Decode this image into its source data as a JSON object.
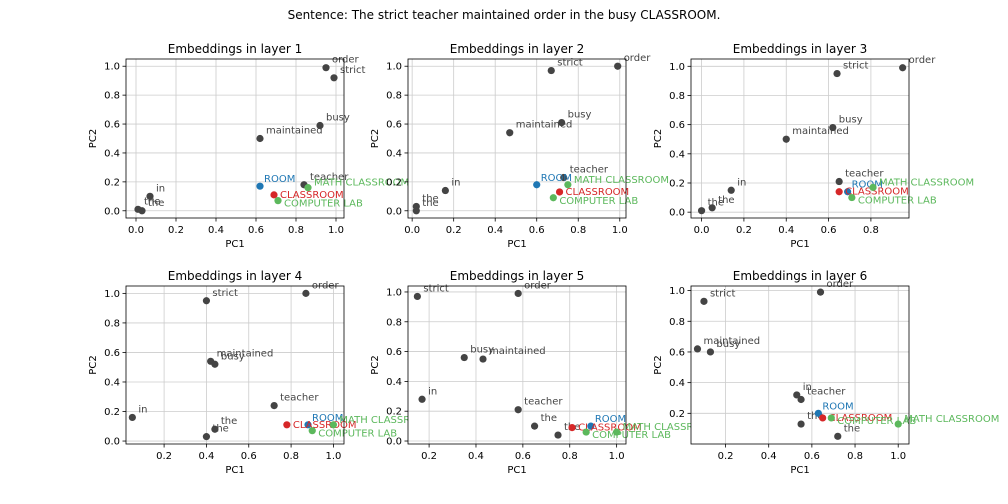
{
  "suptitle": "Sentence: The strict teacher maintained order in the busy CLASSROOM.",
  "colors": {
    "other": "#444444",
    "ROOM": "#1f77b4",
    "CLASSROOM": "#d62728",
    "MATH CLASSROOM": "#5cb85c",
    "COMPUTER LAB": "#5cb85c",
    "grid": "#cccccc"
  },
  "chart_data": [
    {
      "type": "scatter",
      "title": "Embeddings in layer 1",
      "xlabel": "PC1",
      "ylabel": "PC2",
      "xlim": [
        -0.05,
        1.04
      ],
      "ylim": [
        -0.05,
        1.05
      ],
      "xticks": [
        "0.0",
        "0.2",
        "0.4",
        "0.6",
        "0.8",
        "1.0"
      ],
      "xtick_values": [
        0,
        0.2,
        0.4,
        0.6,
        0.8,
        1.0
      ],
      "yticks": [
        "0.0",
        "0.2",
        "0.4",
        "0.6",
        "0.8",
        "1.0"
      ],
      "ytick_values": [
        0,
        0.2,
        0.4,
        0.6,
        0.8,
        1.0
      ],
      "grid": true,
      "points": [
        {
          "label": "order",
          "x": 0.95,
          "y": 0.99,
          "group": "other"
        },
        {
          "label": "strict",
          "x": 0.99,
          "y": 0.92,
          "group": "other"
        },
        {
          "label": "busy",
          "x": 0.92,
          "y": 0.59,
          "group": "other"
        },
        {
          "label": "maintained",
          "x": 0.62,
          "y": 0.5,
          "group": "other"
        },
        {
          "label": "teacher",
          "x": 0.84,
          "y": 0.18,
          "group": "other"
        },
        {
          "label": "in",
          "x": 0.07,
          "y": 0.1,
          "group": "other"
        },
        {
          "label": "the",
          "x": 0.01,
          "y": 0.01,
          "group": "other"
        },
        {
          "label": "the",
          "x": 0.03,
          "y": 0.0,
          "group": "other"
        },
        {
          "label": "ROOM",
          "x": 0.62,
          "y": 0.17,
          "group": "ROOM"
        },
        {
          "label": "CLASSROOM",
          "x": 0.69,
          "y": 0.11,
          "group": "CLASSROOM"
        },
        {
          "label": "MATH CLASSROOM",
          "x": 0.86,
          "y": 0.16,
          "group": "MATH CLASSROOM"
        },
        {
          "label": "COMPUTER LAB",
          "x": 0.71,
          "y": 0.07,
          "group": "COMPUTER LAB"
        }
      ]
    },
    {
      "type": "scatter",
      "title": "Embeddings in layer 2",
      "xlabel": "PC1",
      "ylabel": "PC2",
      "xlim": [
        -0.02,
        1.03
      ],
      "ylim": [
        -0.05,
        1.05
      ],
      "xticks": [
        "0.0",
        "0.2",
        "0.4",
        "0.6",
        "0.8",
        "1.0"
      ],
      "xtick_values": [
        0,
        0.2,
        0.4,
        0.6,
        0.8,
        1.0
      ],
      "yticks": [
        "0.0",
        "0.2",
        "0.4",
        "0.6",
        "0.8",
        "1.0"
      ],
      "ytick_values": [
        0,
        0.2,
        0.4,
        0.6,
        0.8,
        1.0
      ],
      "grid": true,
      "points": [
        {
          "label": "order",
          "x": 0.99,
          "y": 1.0,
          "group": "other"
        },
        {
          "label": "strict",
          "x": 0.67,
          "y": 0.97,
          "group": "other"
        },
        {
          "label": "busy",
          "x": 0.72,
          "y": 0.61,
          "group": "other"
        },
        {
          "label": "maintained",
          "x": 0.47,
          "y": 0.54,
          "group": "other"
        },
        {
          "label": "teacher",
          "x": 0.73,
          "y": 0.23,
          "group": "other"
        },
        {
          "label": "in",
          "x": 0.16,
          "y": 0.14,
          "group": "other"
        },
        {
          "label": "the",
          "x": 0.02,
          "y": 0.03,
          "group": "other"
        },
        {
          "label": "the",
          "x": 0.02,
          "y": 0.0,
          "group": "other"
        },
        {
          "label": "ROOM",
          "x": 0.6,
          "y": 0.18,
          "group": "ROOM"
        },
        {
          "label": "CLASSROOM",
          "x": 0.71,
          "y": 0.13,
          "group": "CLASSROOM"
        },
        {
          "label": "MATH CLASSROOM",
          "x": 0.75,
          "y": 0.18,
          "group": "MATH CLASSROOM"
        },
        {
          "label": "COMPUTER LAB",
          "x": 0.68,
          "y": 0.09,
          "group": "COMPUTER LAB"
        }
      ]
    },
    {
      "type": "scatter",
      "title": "Embeddings in layer 3",
      "xlabel": "PC1",
      "ylabel": "PC2",
      "xlim": [
        -0.05,
        0.98
      ],
      "ylim": [
        -0.04,
        1.05
      ],
      "xticks": [
        "0.0",
        "0.2",
        "0.4",
        "0.6",
        "0.8"
      ],
      "xtick_values": [
        0,
        0.2,
        0.4,
        0.6,
        0.8
      ],
      "yticks": [
        "0.0",
        "0.2",
        "0.4",
        "0.6",
        "0.8",
        "1.0"
      ],
      "ytick_values": [
        0,
        0.2,
        0.4,
        0.6,
        0.8,
        1.0
      ],
      "grid": true,
      "points": [
        {
          "label": "order",
          "x": 0.95,
          "y": 0.99,
          "group": "other"
        },
        {
          "label": "strict",
          "x": 0.64,
          "y": 0.95,
          "group": "other"
        },
        {
          "label": "busy",
          "x": 0.62,
          "y": 0.58,
          "group": "other"
        },
        {
          "label": "maintained",
          "x": 0.4,
          "y": 0.5,
          "group": "other"
        },
        {
          "label": "teacher",
          "x": 0.65,
          "y": 0.21,
          "group": "other"
        },
        {
          "label": "in",
          "x": 0.14,
          "y": 0.15,
          "group": "other"
        },
        {
          "label": "the",
          "x": 0.0,
          "y": 0.01,
          "group": "other"
        },
        {
          "label": "the",
          "x": 0.05,
          "y": 0.03,
          "group": "other"
        },
        {
          "label": "ROOM",
          "x": 0.69,
          "y": 0.14,
          "group": "ROOM"
        },
        {
          "label": "CLASSROOM",
          "x": 0.65,
          "y": 0.14,
          "group": "CLASSROOM"
        },
        {
          "label": "MATH CLASSROOM",
          "x": 0.81,
          "y": 0.17,
          "group": "MATH CLASSROOM"
        },
        {
          "label": "COMPUTER LAB",
          "x": 0.71,
          "y": 0.1,
          "group": "COMPUTER LAB"
        }
      ]
    },
    {
      "type": "scatter",
      "title": "Embeddings in layer 4",
      "xlabel": "PC1",
      "ylabel": "PC2",
      "xlim": [
        0.02,
        1.05
      ],
      "ylim": [
        -0.02,
        1.05
      ],
      "xticks": [
        "0.2",
        "0.4",
        "0.6",
        "0.8",
        "1.0"
      ],
      "xtick_values": [
        0.2,
        0.4,
        0.6,
        0.8,
        1.0
      ],
      "yticks": [
        "0.0",
        "0.2",
        "0.4",
        "0.6",
        "0.8",
        "1.0"
      ],
      "ytick_values": [
        0,
        0.2,
        0.4,
        0.6,
        0.8,
        1.0
      ],
      "grid": true,
      "points": [
        {
          "label": "order",
          "x": 0.87,
          "y": 1.0,
          "group": "other"
        },
        {
          "label": "strict",
          "x": 0.4,
          "y": 0.95,
          "group": "other"
        },
        {
          "label": "maintained",
          "x": 0.42,
          "y": 0.54,
          "group": "other"
        },
        {
          "label": "busy",
          "x": 0.44,
          "y": 0.52,
          "group": "other"
        },
        {
          "label": "teacher",
          "x": 0.72,
          "y": 0.24,
          "group": "other"
        },
        {
          "label": "in",
          "x": 0.05,
          "y": 0.16,
          "group": "other"
        },
        {
          "label": "the",
          "x": 0.44,
          "y": 0.08,
          "group": "other"
        },
        {
          "label": "the",
          "x": 0.4,
          "y": 0.03,
          "group": "other"
        },
        {
          "label": "ROOM",
          "x": 0.88,
          "y": 0.11,
          "group": "ROOM"
        },
        {
          "label": "CLASSROOM",
          "x": 0.78,
          "y": 0.11,
          "group": "CLASSROOM"
        },
        {
          "label": "MATH CLASSROOM",
          "x": 1.0,
          "y": 0.11,
          "group": "MATH CLASSROOM"
        },
        {
          "label": "COMPUTER LAB",
          "x": 0.9,
          "y": 0.07,
          "group": "COMPUTER LAB"
        }
      ]
    },
    {
      "type": "scatter",
      "title": "Embeddings in layer 5",
      "xlabel": "PC1",
      "ylabel": "PC2",
      "xlim": [
        0.11,
        1.04
      ],
      "ylim": [
        -0.02,
        1.04
      ],
      "xticks": [
        "0.2",
        "0.4",
        "0.6",
        "0.8",
        "1.0"
      ],
      "xtick_values": [
        0.2,
        0.4,
        0.6,
        0.8,
        1.0
      ],
      "yticks": [
        "0.0",
        "0.2",
        "0.4",
        "0.6",
        "0.8",
        "1.0"
      ],
      "ytick_values": [
        0,
        0.2,
        0.4,
        0.6,
        0.8,
        1.0
      ],
      "grid": true,
      "points": [
        {
          "label": "order",
          "x": 0.58,
          "y": 0.99,
          "group": "other"
        },
        {
          "label": "strict",
          "x": 0.15,
          "y": 0.97,
          "group": "other"
        },
        {
          "label": "busy",
          "x": 0.35,
          "y": 0.56,
          "group": "other"
        },
        {
          "label": "maintained",
          "x": 0.43,
          "y": 0.55,
          "group": "other"
        },
        {
          "label": "in",
          "x": 0.17,
          "y": 0.28,
          "group": "other"
        },
        {
          "label": "teacher",
          "x": 0.58,
          "y": 0.21,
          "group": "other"
        },
        {
          "label": "the",
          "x": 0.65,
          "y": 0.1,
          "group": "other"
        },
        {
          "label": "the",
          "x": 0.75,
          "y": 0.04,
          "group": "other"
        },
        {
          "label": "ROOM",
          "x": 0.89,
          "y": 0.1,
          "group": "ROOM"
        },
        {
          "label": "CLASSROOM",
          "x": 0.81,
          "y": 0.09,
          "group": "CLASSROOM"
        },
        {
          "label": "MATH CLASSROOM",
          "x": 1.0,
          "y": 0.06,
          "group": "MATH CLASSROOM"
        },
        {
          "label": "COMPUTER LAB",
          "x": 0.87,
          "y": 0.06,
          "group": "COMPUTER LAB"
        }
      ]
    },
    {
      "type": "scatter",
      "title": "Embeddings in layer 6",
      "xlabel": "PC1",
      "ylabel": "PC2",
      "xlim": [
        0.04,
        1.05
      ],
      "ylim": [
        0.0,
        1.03
      ],
      "xticks": [
        "0.2",
        "0.4",
        "0.6",
        "0.8",
        "1.0"
      ],
      "xtick_values": [
        0.2,
        0.4,
        0.6,
        0.8,
        1.0
      ],
      "yticks": [
        "0.2",
        "0.4",
        "0.6",
        "0.8",
        "1.0"
      ],
      "ytick_values": [
        0.2,
        0.4,
        0.6,
        0.8,
        1.0
      ],
      "grid": true,
      "points": [
        {
          "label": "order",
          "x": 0.64,
          "y": 0.99,
          "group": "other"
        },
        {
          "label": "strict",
          "x": 0.1,
          "y": 0.93,
          "group": "other"
        },
        {
          "label": "maintained",
          "x": 0.07,
          "y": 0.62,
          "group": "other"
        },
        {
          "label": "busy",
          "x": 0.13,
          "y": 0.6,
          "group": "other"
        },
        {
          "label": "in",
          "x": 0.53,
          "y": 0.32,
          "group": "other"
        },
        {
          "label": "teacher",
          "x": 0.55,
          "y": 0.29,
          "group": "other"
        },
        {
          "label": "the",
          "x": 0.55,
          "y": 0.13,
          "group": "other"
        },
        {
          "label": "the",
          "x": 0.72,
          "y": 0.05,
          "group": "other"
        },
        {
          "label": "ROOM",
          "x": 0.63,
          "y": 0.2,
          "group": "ROOM"
        },
        {
          "label": "CLASSROOM",
          "x": 0.65,
          "y": 0.17,
          "group": "CLASSROOM"
        },
        {
          "label": "MATH CLASSROOM",
          "x": 1.0,
          "y": 0.13,
          "group": "MATH CLASSROOM"
        },
        {
          "label": "COMPUTER LAB",
          "x": 0.69,
          "y": 0.17,
          "group": "COMPUTER LAB"
        }
      ]
    }
  ]
}
